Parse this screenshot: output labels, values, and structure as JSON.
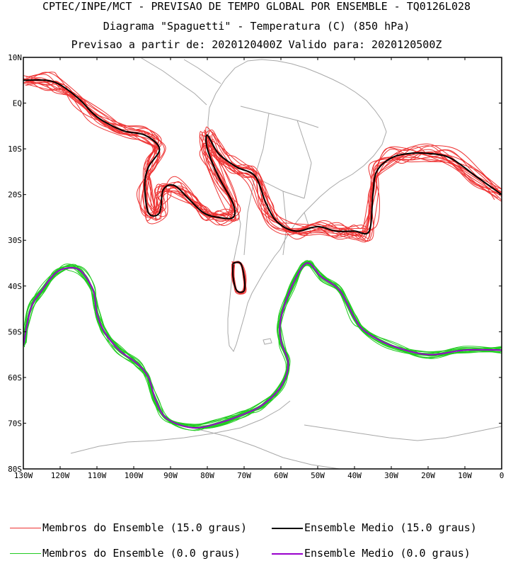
{
  "title": {
    "line1": "CPTEC/INPE/MCT - PREVISAO DE TEMPO GLOBAL POR ENSEMBLE - TQ0126L028",
    "line2": "Diagrama \"Spaguetti\" - Temperatura (C) (850 hPa)",
    "line3": "Previsao a partir de: 2020120400Z  Valido para: 2020120500Z"
  },
  "axes": {
    "lat_labels": [
      "10N",
      "EQ",
      "10S",
      "20S",
      "30S",
      "40S",
      "50S",
      "60S",
      "70S",
      "80S"
    ],
    "lon_labels": [
      "130W",
      "120W",
      "110W",
      "100W",
      "90W",
      "80W",
      "70W",
      "60W",
      "50W",
      "40W",
      "30W",
      "20W",
      "10W",
      "0"
    ],
    "lat_range": [
      10,
      -80
    ],
    "lon_range": [
      -130,
      0
    ]
  },
  "legend": {
    "red_members": "Membros do Ensemble (15.0 graus)",
    "black_mean": "Ensemble Medio (15.0 graus)",
    "green_members": "Membros do Ensemble (0.0 graus)",
    "purple_mean": "Ensemble Medio (0.0 graus)"
  },
  "colors": {
    "red_members": "#ee3333",
    "black_mean": "#000000",
    "green_members": "#22cc22",
    "purple_mean": "#9900cc",
    "coastline": "#a8a8a8"
  },
  "contours": {
    "black_mean_15": [
      [
        -130,
        5
      ],
      [
        -124,
        5
      ],
      [
        -120,
        4
      ],
      [
        -115,
        1
      ],
      [
        -110,
        -3
      ],
      [
        -103,
        -6
      ],
      [
        -97,
        -7
      ],
      [
        -93,
        -10
      ],
      [
        -96,
        -14
      ],
      [
        -97,
        -18
      ],
      [
        -96,
        -24
      ],
      [
        -93,
        -24
      ],
      [
        -92,
        -19
      ],
      [
        -89,
        -18
      ],
      [
        -85,
        -21
      ],
      [
        -81,
        -24
      ],
      [
        -77,
        -25
      ],
      [
        -73,
        -25
      ],
      [
        -73,
        -22
      ],
      [
        -77,
        -16
      ],
      [
        -80,
        -10
      ],
      [
        -80,
        -7
      ],
      [
        -77,
        -11
      ],
      [
        -72,
        -14
      ],
      [
        -67,
        -16
      ],
      [
        -64,
        -22
      ],
      [
        -61,
        -26
      ],
      [
        -56,
        -28
      ],
      [
        -50,
        -27
      ],
      [
        -45,
        -28
      ],
      [
        -40,
        -28
      ],
      [
        -36,
        -28
      ],
      [
        -35,
        -20
      ],
      [
        -34,
        -15
      ],
      [
        -30,
        -12
      ],
      [
        -25,
        -11
      ],
      [
        -20,
        -11
      ],
      [
        -14,
        -12
      ],
      [
        -7,
        -16
      ],
      [
        0,
        -20
      ]
    ],
    "purple_mean_0": [
      [
        -130,
        -53
      ],
      [
        -128,
        -45
      ],
      [
        -125,
        -41
      ],
      [
        -121,
        -37
      ],
      [
        -117,
        -36
      ],
      [
        -114,
        -37
      ],
      [
        -111,
        -41
      ],
      [
        -110,
        -46
      ],
      [
        -108,
        -50
      ],
      [
        -104,
        -54
      ],
      [
        -99,
        -57
      ],
      [
        -96,
        -60
      ],
      [
        -94,
        -65
      ],
      [
        -91,
        -69
      ],
      [
        -84,
        -71
      ],
      [
        -77,
        -70
      ],
      [
        -70,
        -68
      ],
      [
        -65,
        -66
      ],
      [
        -60,
        -62
      ],
      [
        -58,
        -57
      ],
      [
        -60,
        -52
      ],
      [
        -60,
        -47
      ],
      [
        -57,
        -40
      ],
      [
        -53,
        -35
      ],
      [
        -49,
        -38
      ],
      [
        -44,
        -41
      ],
      [
        -40,
        -47
      ],
      [
        -37,
        -50
      ],
      [
        -30,
        -53
      ],
      [
        -20,
        -55
      ],
      [
        -10,
        -54
      ],
      [
        0,
        -54
      ]
    ],
    "black_mean_island": [
      [
        -73,
        -35
      ],
      [
        -71,
        -35
      ],
      [
        -70,
        -38
      ],
      [
        -70,
        -41
      ],
      [
        -72,
        -41
      ],
      [
        -73,
        -38
      ],
      [
        -73,
        -35
      ]
    ]
  }
}
